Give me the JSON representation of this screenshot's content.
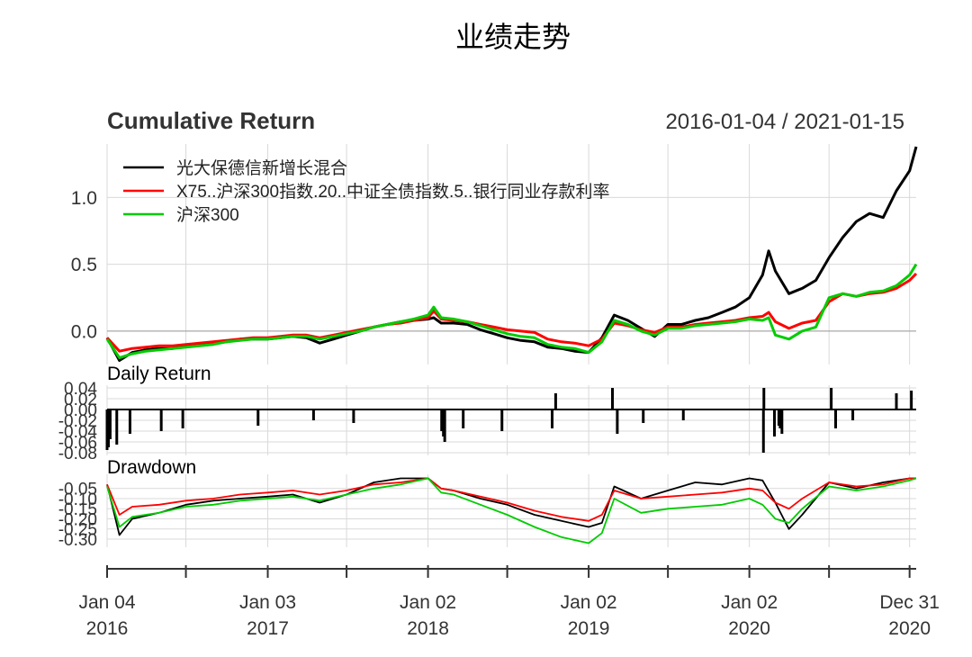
{
  "page": {
    "title": "业绩走势"
  },
  "chart_data": [
    {
      "panel": "cumulative-return",
      "type": "line",
      "title": "Cumulative Return",
      "date_range": "2016-01-04 / 2021-01-15",
      "ylim": [
        -0.25,
        1.4
      ],
      "yticks": [
        0.0,
        0.5,
        1.0
      ],
      "ytick_labels": [
        "0.0",
        "0.5",
        "1.0"
      ],
      "grid": true,
      "legend_position": "top-left",
      "x": [
        "2016-01-04",
        "2016-02-01",
        "2016-03-01",
        "2016-04-01",
        "2016-05-01",
        "2016-06-01",
        "2016-07-01",
        "2016-08-01",
        "2016-09-01",
        "2016-10-01",
        "2016-11-01",
        "2016-12-01",
        "2017-01-03",
        "2017-02-01",
        "2017-03-01",
        "2017-04-01",
        "2017-05-01",
        "2017-06-01",
        "2017-07-01",
        "2017-08-01",
        "2017-09-01",
        "2017-10-01",
        "2017-11-01",
        "2017-12-01",
        "2018-01-02",
        "2018-01-15",
        "2018-02-01",
        "2018-03-01",
        "2018-04-01",
        "2018-05-01",
        "2018-06-01",
        "2018-07-01",
        "2018-08-01",
        "2018-09-01",
        "2018-10-01",
        "2018-11-01",
        "2018-12-01",
        "2019-01-02",
        "2019-02-01",
        "2019-03-01",
        "2019-04-01",
        "2019-05-01",
        "2019-06-01",
        "2019-07-01",
        "2019-08-01",
        "2019-09-01",
        "2019-10-01",
        "2019-11-01",
        "2019-12-01",
        "2020-01-02",
        "2020-02-01",
        "2020-02-15",
        "2020-03-01",
        "2020-04-01",
        "2020-05-01",
        "2020-06-01",
        "2020-07-01",
        "2020-08-01",
        "2020-09-01",
        "2020-10-01",
        "2020-11-01",
        "2020-12-01",
        "2020-12-31",
        "2021-01-15"
      ],
      "series": [
        {
          "name": "光大保德信新增长混合",
          "color": "#000000",
          "values": [
            -0.05,
            -0.22,
            -0.16,
            -0.14,
            -0.13,
            -0.13,
            -0.11,
            -0.1,
            -0.09,
            -0.08,
            -0.06,
            -0.06,
            -0.06,
            -0.05,
            -0.04,
            -0.05,
            -0.09,
            -0.06,
            -0.03,
            0.0,
            0.03,
            0.05,
            0.07,
            0.08,
            0.09,
            0.1,
            0.06,
            0.06,
            0.05,
            0.01,
            -0.02,
            -0.05,
            -0.07,
            -0.08,
            -0.12,
            -0.13,
            -0.15,
            -0.16,
            -0.05,
            0.12,
            0.08,
            0.02,
            -0.04,
            0.05,
            0.05,
            0.08,
            0.1,
            0.14,
            0.18,
            0.25,
            0.42,
            0.6,
            0.45,
            0.28,
            0.32,
            0.38,
            0.55,
            0.7,
            0.82,
            0.88,
            0.85,
            1.05,
            1.2,
            1.38
          ]
        },
        {
          "name": "X75..沪深300指数.20..中证全债指数.5..银行同业存款利率",
          "color": "#ff0000",
          "values": [
            -0.05,
            -0.15,
            -0.13,
            -0.12,
            -0.11,
            -0.11,
            -0.1,
            -0.09,
            -0.08,
            -0.07,
            -0.06,
            -0.05,
            -0.05,
            -0.04,
            -0.03,
            -0.03,
            -0.05,
            -0.03,
            -0.01,
            0.01,
            0.03,
            0.05,
            0.06,
            0.08,
            0.1,
            0.15,
            0.09,
            0.08,
            0.07,
            0.05,
            0.03,
            0.01,
            0.0,
            -0.01,
            -0.06,
            -0.08,
            -0.09,
            -0.11,
            -0.06,
            0.06,
            0.04,
            0.01,
            -0.01,
            0.03,
            0.03,
            0.05,
            0.06,
            0.07,
            0.08,
            0.1,
            0.11,
            0.14,
            0.07,
            0.02,
            0.06,
            0.08,
            0.22,
            0.28,
            0.26,
            0.28,
            0.29,
            0.32,
            0.38,
            0.43
          ]
        },
        {
          "name": "沪深300",
          "color": "#00cc00",
          "values": [
            -0.06,
            -0.2,
            -0.17,
            -0.15,
            -0.14,
            -0.13,
            -0.12,
            -0.11,
            -0.1,
            -0.08,
            -0.07,
            -0.06,
            -0.06,
            -0.05,
            -0.04,
            -0.04,
            -0.06,
            -0.04,
            -0.02,
            0.0,
            0.03,
            0.05,
            0.07,
            0.09,
            0.12,
            0.18,
            0.1,
            0.09,
            0.07,
            0.04,
            0.01,
            -0.02,
            -0.04,
            -0.05,
            -0.1,
            -0.12,
            -0.13,
            -0.16,
            -0.08,
            0.08,
            0.05,
            0.0,
            -0.03,
            0.02,
            0.02,
            0.04,
            0.05,
            0.06,
            0.07,
            0.09,
            0.08,
            0.1,
            -0.03,
            -0.06,
            0.0,
            0.03,
            0.25,
            0.28,
            0.26,
            0.29,
            0.3,
            0.34,
            0.42,
            0.5
          ]
        }
      ]
    },
    {
      "panel": "daily-return",
      "type": "bar",
      "title": "Daily Return",
      "ylim": [
        -0.085,
        0.045
      ],
      "yticks": [
        -0.08,
        -0.06,
        -0.04,
        -0.02,
        0.0,
        0.02,
        0.04
      ],
      "ytick_labels": [
        "-0.08",
        "-0.06",
        "-0.04",
        "-0.02",
        "0.00",
        "0.02",
        "0.04"
      ],
      "grid": true,
      "dates": [
        "2016-01-04",
        "2016-01-07",
        "2016-01-11",
        "2016-01-26",
        "2016-02-25",
        "2016-05-06",
        "2016-06-24",
        "2016-12-12",
        "2017-04-17",
        "2017-07-17",
        "2018-02-02",
        "2018-02-06",
        "2018-02-09",
        "2018-03-23",
        "2018-06-19",
        "2018-10-11",
        "2018-10-19",
        "2019-02-25",
        "2019-03-08",
        "2019-05-06",
        "2019-08-05",
        "2020-02-03",
        "2020-02-04",
        "2020-02-28",
        "2020-03-09",
        "2020-03-12",
        "2020-03-16",
        "2020-07-06",
        "2020-07-16",
        "2020-08-24",
        "2020-12-01",
        "2021-01-04"
      ],
      "values": [
        -0.075,
        -0.07,
        -0.055,
        -0.065,
        -0.045,
        -0.04,
        -0.035,
        -0.03,
        -0.02,
        -0.025,
        -0.04,
        -0.05,
        -0.06,
        -0.035,
        -0.04,
        -0.035,
        0.03,
        0.04,
        -0.045,
        -0.025,
        -0.02,
        -0.08,
        0.04,
        -0.05,
        -0.03,
        -0.035,
        -0.045,
        0.04,
        -0.035,
        -0.02,
        0.03,
        0.035
      ]
    },
    {
      "panel": "drawdown",
      "type": "line",
      "title": "Drawdown",
      "ylim": [
        -0.34,
        0.02
      ],
      "yticks": [
        -0.05,
        -0.1,
        -0.15,
        -0.2,
        -0.25,
        -0.3
      ],
      "ytick_labels": [
        "-0.05",
        "-0.10",
        "-0.15",
        "-0.20",
        "-0.25",
        "-0.30"
      ],
      "grid": true,
      "x": [
        "2016-01-04",
        "2016-02-01",
        "2016-03-01",
        "2016-05-01",
        "2016-07-01",
        "2016-09-01",
        "2016-11-01",
        "2017-01-03",
        "2017-03-01",
        "2017-05-01",
        "2017-07-01",
        "2017-09-01",
        "2017-11-01",
        "2018-01-02",
        "2018-02-01",
        "2018-03-01",
        "2018-05-01",
        "2018-07-01",
        "2018-09-01",
        "2018-11-01",
        "2019-01-02",
        "2019-02-01",
        "2019-03-01",
        "2019-05-01",
        "2019-07-01",
        "2019-09-01",
        "2019-11-01",
        "2020-01-02",
        "2020-02-01",
        "2020-03-01",
        "2020-04-01",
        "2020-05-01",
        "2020-07-01",
        "2020-09-01",
        "2020-11-01",
        "2020-12-31",
        "2021-01-15"
      ],
      "series": [
        {
          "name": "光大保德信新增长混合",
          "color": "#000000",
          "values": [
            -0.03,
            -0.28,
            -0.2,
            -0.17,
            -0.13,
            -0.11,
            -0.1,
            -0.09,
            -0.08,
            -0.12,
            -0.08,
            -0.02,
            0.0,
            0.0,
            -0.05,
            -0.06,
            -0.1,
            -0.13,
            -0.18,
            -0.21,
            -0.24,
            -0.22,
            -0.04,
            -0.1,
            -0.06,
            -0.02,
            -0.03,
            0.0,
            -0.01,
            -0.12,
            -0.25,
            -0.18,
            -0.02,
            -0.05,
            -0.02,
            0.0,
            0.0
          ]
        },
        {
          "name": "X75..沪深300指数.20..中证全债指数.5..银行同业存款利率",
          "color": "#ff0000",
          "values": [
            -0.03,
            -0.18,
            -0.14,
            -0.13,
            -0.11,
            -0.1,
            -0.08,
            -0.07,
            -0.06,
            -0.08,
            -0.06,
            -0.03,
            -0.02,
            0.0,
            -0.05,
            -0.06,
            -0.09,
            -0.12,
            -0.16,
            -0.19,
            -0.21,
            -0.18,
            -0.06,
            -0.1,
            -0.09,
            -0.08,
            -0.07,
            -0.05,
            -0.06,
            -0.12,
            -0.15,
            -0.1,
            -0.02,
            -0.04,
            -0.03,
            0.0,
            0.0
          ]
        },
        {
          "name": "沪深300",
          "color": "#00cc00",
          "values": [
            -0.04,
            -0.24,
            -0.19,
            -0.17,
            -0.14,
            -0.13,
            -0.11,
            -0.1,
            -0.09,
            -0.11,
            -0.08,
            -0.05,
            -0.03,
            0.0,
            -0.07,
            -0.08,
            -0.13,
            -0.18,
            -0.24,
            -0.29,
            -0.32,
            -0.27,
            -0.1,
            -0.17,
            -0.15,
            -0.14,
            -0.13,
            -0.1,
            -0.13,
            -0.2,
            -0.22,
            -0.15,
            -0.04,
            -0.06,
            -0.04,
            -0.01,
            0.0
          ]
        }
      ]
    }
  ],
  "x_axis": {
    "ticks": [
      {
        "date": "2016-01-04",
        "line1": "Jan 04",
        "line2": "2016"
      },
      {
        "date": "2017-01-03",
        "line1": "Jan 03",
        "line2": "2017"
      },
      {
        "date": "2018-01-02",
        "line1": "Jan 02",
        "line2": "2018"
      },
      {
        "date": "2019-01-02",
        "line1": "Jan 02",
        "line2": "2019"
      },
      {
        "date": "2020-01-02",
        "line1": "Jan 02",
        "line2": "2020"
      },
      {
        "date": "2020-12-31",
        "line1": "Dec 31",
        "line2": "2020"
      }
    ],
    "minor_ticks": [
      "2016-07-01",
      "2017-07-01",
      "2018-07-01",
      "2019-07-01",
      "2020-07-01"
    ]
  }
}
